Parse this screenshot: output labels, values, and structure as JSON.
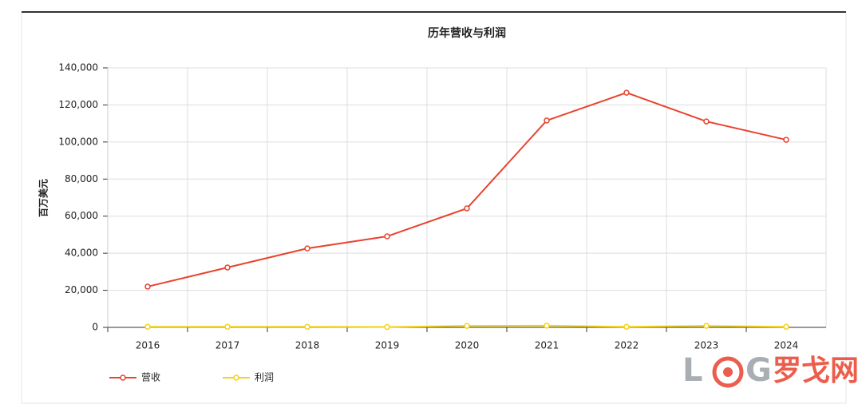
{
  "chart_data": {
    "type": "line",
    "title": "历年营收与利润",
    "y_label": "百万美元",
    "categories": [
      "2016",
      "2017",
      "2018",
      "2019",
      "2020",
      "2021",
      "2022",
      "2023",
      "2024"
    ],
    "series": [
      {
        "name": "营收",
        "color": "#e8432e",
        "values": [
          22000,
          32300,
          42600,
          49100,
          64200,
          111600,
          126600,
          111100,
          101200
        ]
      },
      {
        "name": "利润",
        "color": "#f2d31b",
        "values": [
          300,
          300,
          300,
          200,
          800,
          900,
          300,
          800,
          300
        ]
      }
    ],
    "ylim": [
      0,
      140000
    ],
    "yticks": [
      0,
      {
        "value": 20000,
        "label": "20,000"
      },
      {
        "value": 40000,
        "label": "40,000"
      },
      {
        "value": 60000,
        "label": "60,000"
      },
      {
        "value": 80000,
        "label": "80,000"
      },
      {
        "value": 100000,
        "label": "100,000"
      },
      {
        "value": 120000,
        "label": "120,000"
      },
      {
        "value": 140000,
        "label": "140,000"
      }
    ],
    "grid": true,
    "legend": "bottom-left",
    "watermark": [
      "L",
      "G",
      "罗戈网"
    ]
  }
}
